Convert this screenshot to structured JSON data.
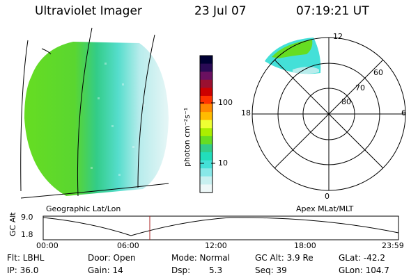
{
  "header": {
    "instrument": "Ultraviolet Imager",
    "date": "23 Jul 07",
    "time": "07:19:21 UT"
  },
  "left_panel": {
    "label": "Geographic Lat/Lon"
  },
  "right_panel": {
    "label": "Apex MLat/MLT",
    "mlt_labels": [
      "12",
      "18",
      "6",
      "0"
    ],
    "mlat_labels": [
      "60",
      "70",
      "80"
    ]
  },
  "colorbar": {
    "unit_label": "photon cm⁻²s⁻¹",
    "ticks": [
      "100",
      "10"
    ],
    "colors": [
      "#000033",
      "#2a0a55",
      "#6a1060",
      "#9a1030",
      "#cc0000",
      "#ff3300",
      "#ff8800",
      "#ffbb00",
      "#eeff33",
      "#aaee00",
      "#66dd22",
      "#33cc88",
      "#22ddbb",
      "#44e0d8",
      "#88e8e8",
      "#c8f0f0",
      "#eef8f8"
    ]
  },
  "timeline": {
    "axis_label": "GC Alt",
    "y_ticks": [
      "9.0",
      "1.8"
    ],
    "x_ticks": [
      "00:00",
      "06:00",
      "12:00",
      "18:00",
      "23:59"
    ],
    "current_marker_color": "#aa2222"
  },
  "info": {
    "row1": {
      "flt": "Flt: LBHL",
      "door": "Door: Open",
      "mode": "Mode: Normal",
      "gcalt": "GC Alt: 3.9 Re",
      "glat": "GLat: -42.2"
    },
    "row2": {
      "ip": "IP: 36.0",
      "gain": "Gain: 14",
      "dsp_label": "Dsp:",
      "dsp_value": "5.3",
      "seq": "Seq: 39",
      "glon": "GLon: 104.7"
    }
  }
}
